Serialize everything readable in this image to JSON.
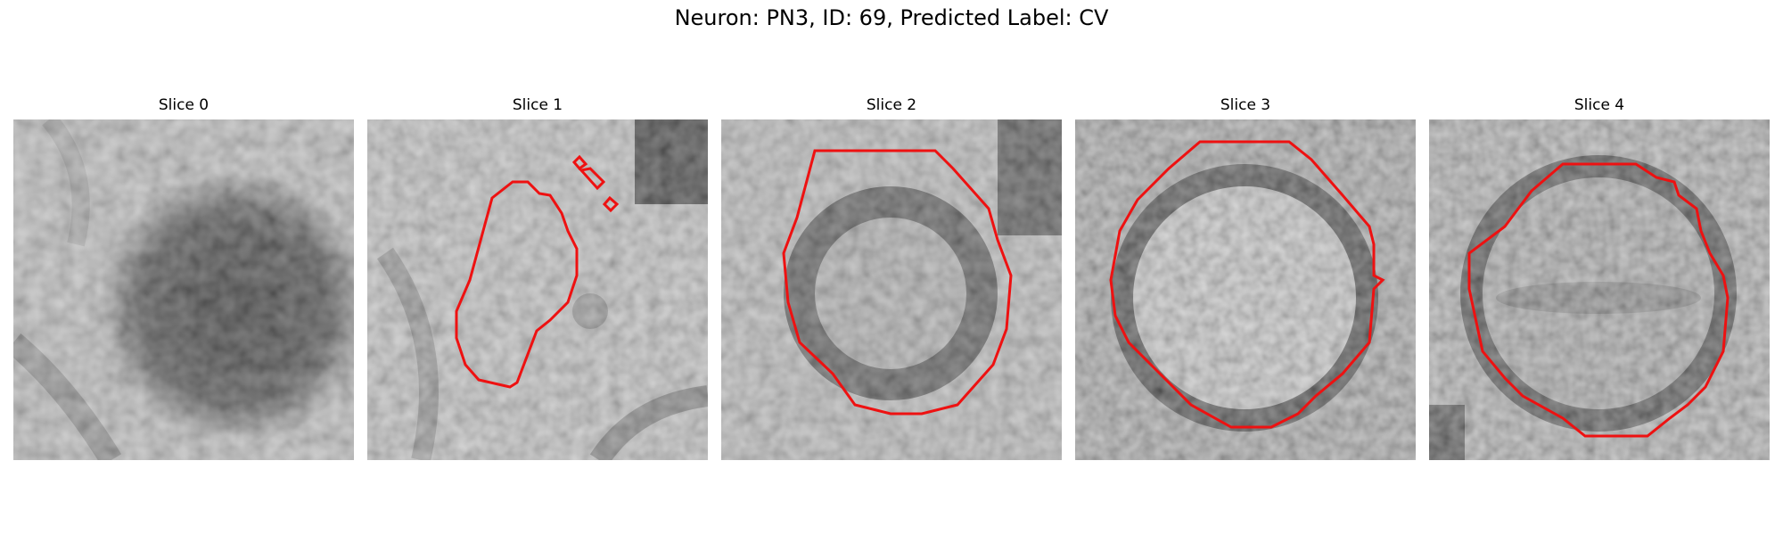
{
  "figure": {
    "title": "Neuron: PN3, ID: 69, Predicted Label: CV",
    "contour_color": "#ee1111"
  },
  "panels": [
    {
      "title": "Slice 0",
      "has_contour": false
    },
    {
      "title": "Slice 1",
      "has_contour": true
    },
    {
      "title": "Slice 2",
      "has_contour": true
    },
    {
      "title": "Slice 3",
      "has_contour": true
    },
    {
      "title": "Slice 4",
      "has_contour": true
    }
  ]
}
